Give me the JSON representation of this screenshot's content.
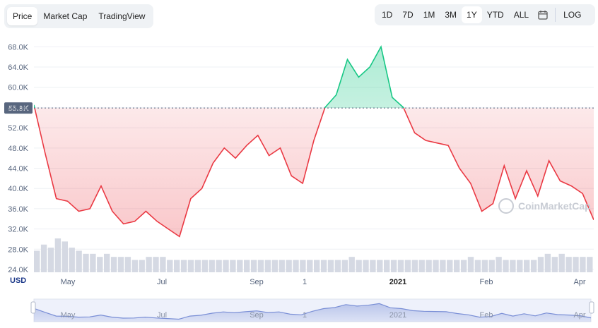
{
  "tabs": {
    "price": "Price",
    "market_cap": "Market Cap",
    "trading_view": "TradingView"
  },
  "ranges": [
    "1D",
    "7D",
    "1M",
    "3M",
    "1Y",
    "YTD",
    "ALL"
  ],
  "active_range": "1Y",
  "log_label": "LOG",
  "icons": {
    "calendar": "calendar-icon",
    "logo": "coinmarketcap-logo-icon"
  },
  "watermark": "CoinMarketCap",
  "currency_label": "USD",
  "current_price_label": "55.9K",
  "colors": {
    "up": "#16c784",
    "down": "#ea3943",
    "volume": "#d5d9e3",
    "navigator": "#7a8fd6"
  },
  "chart_data": {
    "type": "area",
    "baseline": 55900,
    "y_ticks": [
      "68.0K",
      "64.0K",
      "60.0K",
      "56.0K",
      "52.0K",
      "48.0K",
      "44.0K",
      "40.0K",
      "36.0K",
      "32.0K",
      "28.0K",
      "24.0K"
    ],
    "ylim": [
      24000,
      70000
    ],
    "x_tick_labels": [
      "May",
      "Jul",
      "Sep",
      "1",
      "2021",
      "Feb",
      "Apr"
    ],
    "x": [
      0,
      2,
      4,
      6,
      8,
      10,
      12,
      14,
      16,
      18,
      20,
      22,
      24,
      26,
      28,
      30,
      32,
      34,
      36,
      38,
      40,
      42,
      44,
      46,
      48,
      50,
      52,
      54,
      56,
      58,
      60,
      62,
      64,
      66,
      68,
      70,
      72,
      74,
      76,
      78,
      80,
      82,
      84,
      86,
      88,
      90,
      92,
      94,
      96,
      98,
      100
    ],
    "values": [
      56500,
      47000,
      38000,
      37500,
      35500,
      36000,
      40500,
      35500,
      33000,
      33500,
      35500,
      33500,
      32000,
      30500,
      38000,
      40000,
      45000,
      48000,
      46000,
      48500,
      50500,
      46500,
      48000,
      42500,
      41000,
      49500,
      56000,
      58500,
      65500,
      62000,
      64000,
      68000,
      58000,
      56000,
      51000,
      49500,
      49000,
      48500,
      44000,
      41000,
      35500,
      37000,
      44500,
      38000,
      43500,
      38500,
      45500,
      41500,
      40500,
      39000,
      33800
    ]
  },
  "volume_data": [
    7,
    9,
    8,
    11,
    10,
    8,
    7,
    6,
    6,
    5,
    6,
    5,
    5,
    5,
    4,
    4,
    5,
    5,
    5,
    4,
    4,
    4,
    4,
    4,
    4,
    4,
    4,
    4,
    4,
    4,
    4,
    4,
    4,
    4,
    4,
    4,
    4,
    4,
    4,
    4,
    4,
    4,
    4,
    4,
    4,
    5,
    4,
    4,
    4,
    4,
    4,
    4,
    4,
    4,
    4,
    4,
    4,
    4,
    4,
    4,
    4,
    4,
    5,
    4,
    4,
    4,
    5,
    4,
    4,
    4,
    4,
    4,
    5,
    6,
    5,
    6,
    5,
    5,
    5,
    5
  ]
}
